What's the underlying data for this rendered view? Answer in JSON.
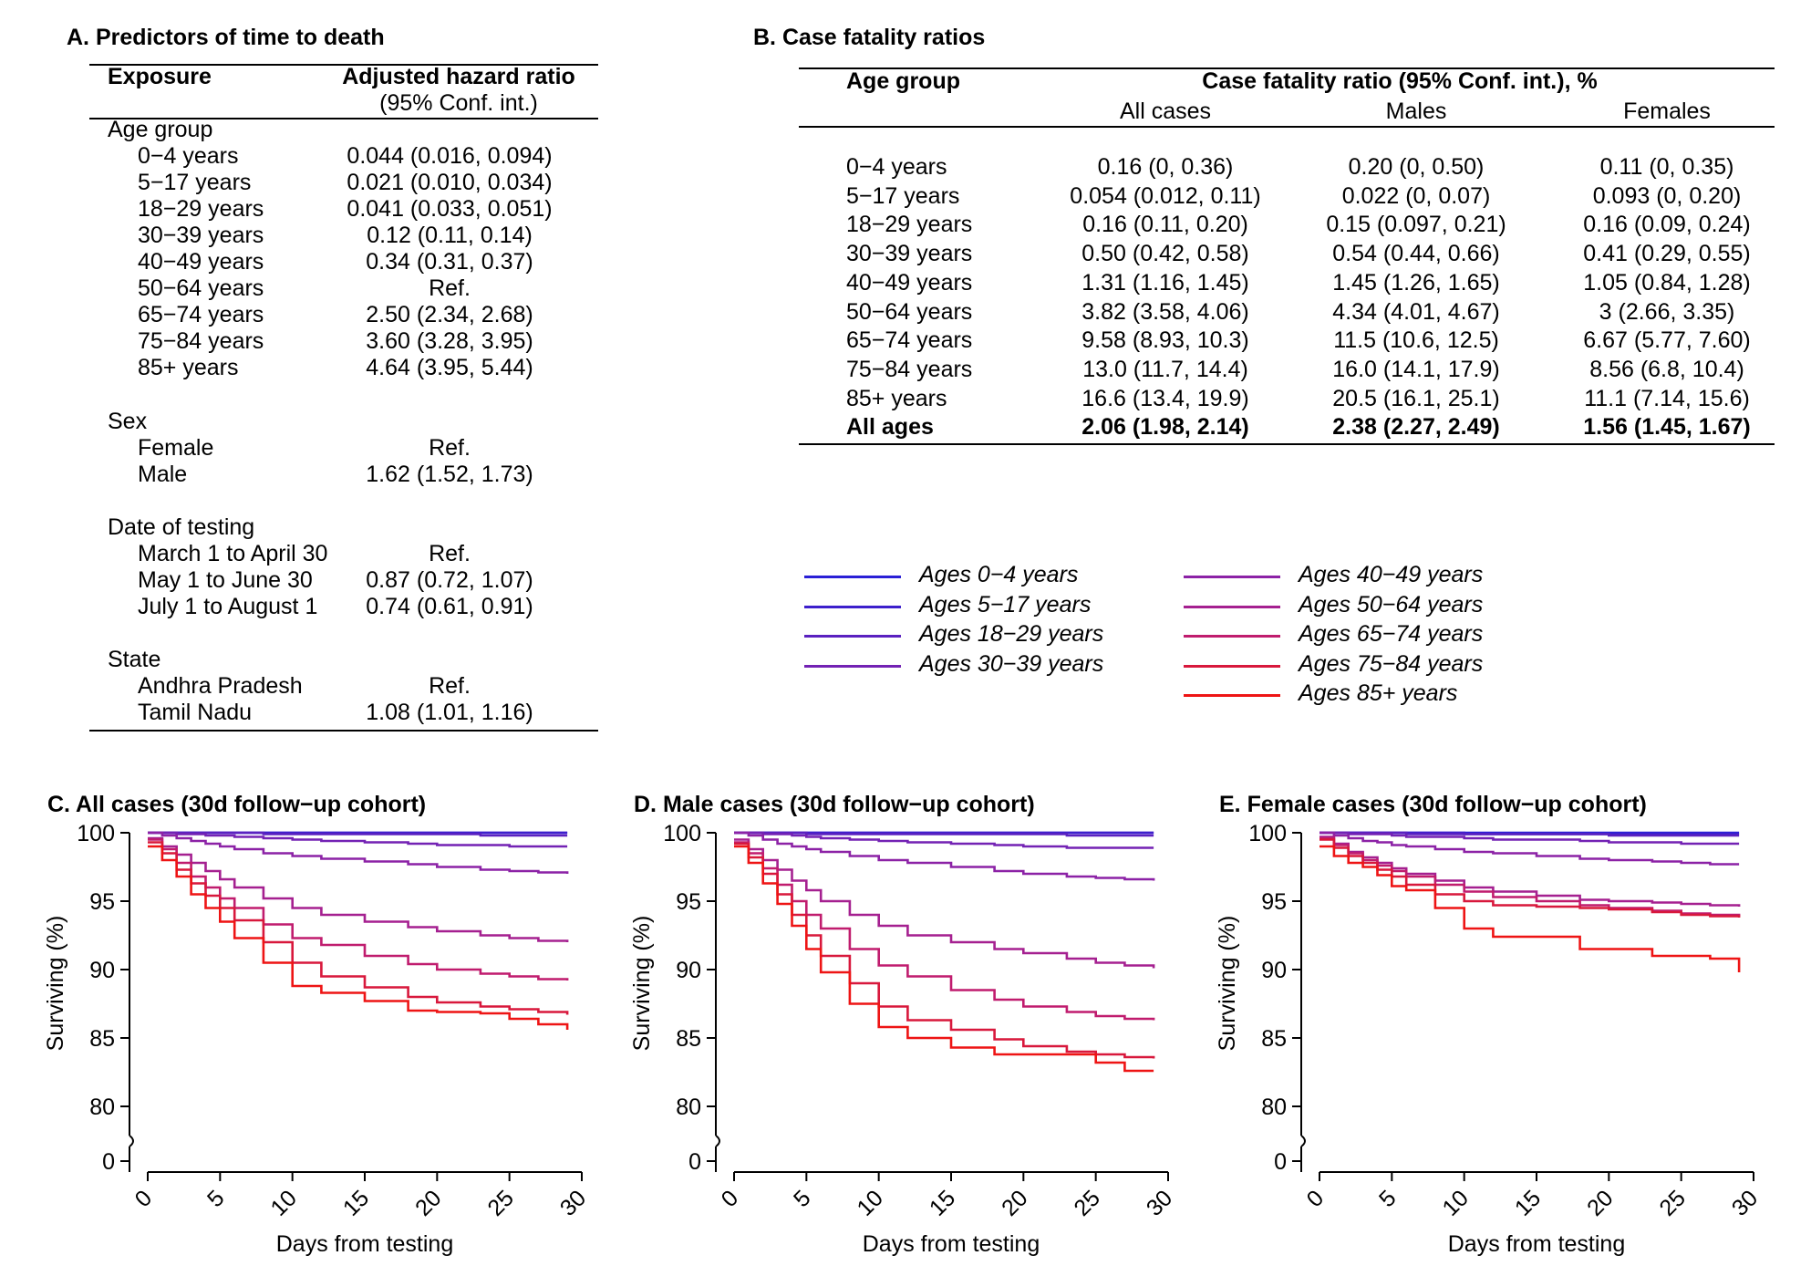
{
  "panelA": {
    "title": "A. Predictors of time to death",
    "col_exposure": "Exposure",
    "col_hr": "Adjusted hazard ratio",
    "col_hr_sub": "(95% Conf. int.)",
    "rows": [
      {
        "label": "Age group",
        "value": "",
        "indent": 0
      },
      {
        "label": "0−4 years",
        "value": "0.044 (0.016, 0.094)",
        "indent": 1
      },
      {
        "label": "5−17 years",
        "value": "0.021 (0.010, 0.034)",
        "indent": 1
      },
      {
        "label": "18−29 years",
        "value": "0.041 (0.033, 0.051)",
        "indent": 1
      },
      {
        "label": "30−39 years",
        "value": "0.12 (0.11, 0.14)",
        "indent": 1
      },
      {
        "label": "40−49 years",
        "value": "0.34 (0.31, 0.37)",
        "indent": 1
      },
      {
        "label": "50−64 years",
        "value": "Ref.",
        "indent": 1
      },
      {
        "label": "65−74 years",
        "value": "2.50 (2.34, 2.68)",
        "indent": 1
      },
      {
        "label": "75−84 years",
        "value": "3.60 (3.28, 3.95)",
        "indent": 1
      },
      {
        "label": "85+ years",
        "value": "4.64 (3.95, 5.44)",
        "indent": 1
      },
      {
        "label": "Sex",
        "value": "",
        "indent": 0
      },
      {
        "label": "Female",
        "value": "Ref.",
        "indent": 1
      },
      {
        "label": "Male",
        "value": "1.62 (1.52, 1.73)",
        "indent": 1
      },
      {
        "label": "Date of testing",
        "value": "",
        "indent": 0
      },
      {
        "label": "March 1 to April 30",
        "value": "Ref.",
        "indent": 1
      },
      {
        "label": "May 1 to June 30",
        "value": "0.87 (0.72, 1.07)",
        "indent": 1
      },
      {
        "label": "July 1 to August 1",
        "value": "0.74 (0.61, 0.91)",
        "indent": 1
      },
      {
        "label": "State",
        "value": "",
        "indent": 0
      },
      {
        "label": "Andhra Pradesh",
        "value": "Ref.",
        "indent": 1
      },
      {
        "label": "Tamil Nadu",
        "value": "1.08 (1.01, 1.16)",
        "indent": 1
      }
    ]
  },
  "panelB": {
    "title": "B. Case fatality ratios",
    "col_age": "Age group",
    "col_span": "Case fatality ratio (95% Conf. int.), %",
    "sub_all": "All cases",
    "sub_males": "Males",
    "sub_females": "Females",
    "rows": [
      {
        "age": "0−4 years",
        "all": "0.16 (0, 0.36)",
        "males": "0.20 (0, 0.50)",
        "females": "0.11 (0, 0.35)"
      },
      {
        "age": "5−17 years",
        "all": "0.054 (0.012, 0.11)",
        "males": "0.022 (0, 0.07)",
        "females": "0.093 (0, 0.20)"
      },
      {
        "age": "18−29 years",
        "all": "0.16 (0.11, 0.20)",
        "males": "0.15 (0.097, 0.21)",
        "females": "0.16 (0.09, 0.24)"
      },
      {
        "age": "30−39 years",
        "all": "0.50 (0.42, 0.58)",
        "males": "0.54 (0.44, 0.66)",
        "females": "0.41 (0.29, 0.55)"
      },
      {
        "age": "40−49 years",
        "all": "1.31 (1.16, 1.45)",
        "males": "1.45 (1.26, 1.65)",
        "females": "1.05 (0.84, 1.28)"
      },
      {
        "age": "50−64 years",
        "all": "3.82 (3.58, 4.06)",
        "males": "4.34 (4.01, 4.67)",
        "females": "3 (2.66, 3.35)"
      },
      {
        "age": "65−74 years",
        "all": "9.58 (8.93, 10.3)",
        "males": "11.5 (10.6, 12.5)",
        "females": "6.67 (5.77, 7.60)"
      },
      {
        "age": "75−84 years",
        "all": "13.0 (11.7, 14.4)",
        "males": "16.0 (14.1, 17.9)",
        "females": "8.56 (6.8, 10.4)"
      },
      {
        "age": "85+ years",
        "all": "16.6 (13.4, 19.9)",
        "males": "20.5 (16.1, 25.1)",
        "females": "11.1 (7.14, 15.6)"
      },
      {
        "age": "All ages",
        "all": "2.06 (1.98, 2.14)",
        "males": "2.38 (2.27, 2.49)",
        "females": "1.56 (1.45, 1.67)",
        "bold": true
      }
    ]
  },
  "legend": {
    "items": [
      {
        "label": "Ages 0−4 years",
        "color": "#2a1fd6"
      },
      {
        "label": "Ages 5−17 years",
        "color": "#3d1fcc"
      },
      {
        "label": "Ages 18−29 years",
        "color": "#5a21c0"
      },
      {
        "label": "Ages 30−39 years",
        "color": "#7322b4"
      },
      {
        "label": "Ages 40−49 years",
        "color": "#8c22a6"
      },
      {
        "label": "Ages 50−64 years",
        "color": "#a52090"
      },
      {
        "label": "Ages 65−74 years",
        "color": "#c01c6e"
      },
      {
        "label": "Ages 75−84 years",
        "color": "#d8183c"
      },
      {
        "label": "Ages 85+ years",
        "color": "#ee1414"
      }
    ]
  },
  "chart_data": [
    {
      "type": "line",
      "title": "C. All cases (30d follow−up cohort)",
      "xlabel": "Days from testing",
      "ylabel": "Surviving (%)",
      "xlim": [
        0,
        30
      ],
      "ylim_broken": [
        [
          0,
          0
        ],
        [
          80,
          100
        ]
      ],
      "xticks": [
        "0",
        "5",
        "10",
        "15",
        "20",
        "25",
        "30"
      ],
      "yticks": [
        "0",
        "80",
        "85",
        "90",
        "95",
        "100"
      ],
      "x": [
        0,
        1,
        2,
        3,
        4,
        5,
        6,
        8,
        10,
        12,
        15,
        18,
        20,
        23,
        25,
        27,
        29
      ],
      "series": [
        {
          "name": "Ages 0−4 years",
          "values": [
            100,
            100,
            100,
            100,
            100,
            100,
            100,
            100,
            100,
            100,
            100,
            100,
            100,
            100,
            100,
            100,
            100
          ]
        },
        {
          "name": "Ages 5−17 years",
          "values": [
            100,
            100,
            100,
            100,
            100,
            100,
            100,
            100,
            100,
            100,
            100,
            100,
            100,
            100,
            100,
            100,
            100
          ]
        },
        {
          "name": "Ages 18−29 years",
          "values": [
            100,
            100,
            100,
            100,
            100,
            100,
            100,
            99.9,
            99.9,
            99.9,
            99.9,
            99.9,
            99.9,
            99.8,
            99.8,
            99.8,
            99.8
          ]
        },
        {
          "name": "Ages 30−39 years",
          "values": [
            100,
            100,
            99.9,
            99.9,
            99.8,
            99.8,
            99.7,
            99.6,
            99.5,
            99.4,
            99.3,
            99.2,
            99.1,
            99.1,
            99.0,
            99.0,
            99.0
          ]
        },
        {
          "name": "Ages 40−49 years",
          "values": [
            100,
            99.8,
            99.6,
            99.4,
            99.2,
            99.0,
            98.8,
            98.5,
            98.3,
            98.1,
            97.9,
            97.7,
            97.5,
            97.3,
            97.2,
            97.1,
            97.0
          ]
        },
        {
          "name": "Ages 50−64 years",
          "values": [
            99.6,
            99.0,
            98.4,
            97.8,
            97.2,
            96.6,
            96.0,
            95.2,
            94.5,
            94.0,
            93.5,
            93.1,
            92.8,
            92.5,
            92.3,
            92.1,
            92.0
          ]
        },
        {
          "name": "Ages 65−74 years",
          "values": [
            99.5,
            98.8,
            97.8,
            96.8,
            96.0,
            95.2,
            94.5,
            93.3,
            92.3,
            91.8,
            91.0,
            90.4,
            90.0,
            89.7,
            89.5,
            89.3,
            89.2
          ]
        },
        {
          "name": "Ages 75−84 years",
          "values": [
            99.3,
            98.5,
            97.3,
            96.3,
            95.4,
            94.5,
            93.6,
            92.0,
            90.5,
            89.5,
            88.7,
            88.0,
            87.6,
            87.3,
            87.1,
            86.9,
            86.7
          ]
        },
        {
          "name": "Ages 85+ years",
          "values": [
            99.0,
            98.0,
            96.8,
            95.5,
            94.5,
            93.5,
            92.3,
            90.5,
            88.8,
            88.3,
            87.7,
            87.0,
            86.9,
            86.8,
            86.4,
            86.0,
            85.6
          ]
        }
      ]
    },
    {
      "type": "line",
      "title": "D. Male cases (30d follow−up cohort)",
      "xlabel": "Days from testing",
      "ylabel": "Surviving (%)",
      "xlim": [
        0,
        30
      ],
      "ylim_broken": [
        [
          0,
          0
        ],
        [
          80,
          100
        ]
      ],
      "xticks": [
        "0",
        "5",
        "10",
        "15",
        "20",
        "25",
        "30"
      ],
      "yticks": [
        "0",
        "80",
        "85",
        "90",
        "95",
        "100"
      ],
      "x": [
        0,
        1,
        2,
        3,
        4,
        5,
        6,
        8,
        10,
        12,
        15,
        18,
        20,
        23,
        25,
        27,
        29
      ],
      "series": [
        {
          "name": "Ages 0−4 years",
          "values": [
            100,
            100,
            100,
            100,
            100,
            100,
            100,
            100,
            100,
            100,
            100,
            100,
            100,
            100,
            100,
            100,
            100
          ]
        },
        {
          "name": "Ages 5−17 years",
          "values": [
            100,
            100,
            100,
            100,
            100,
            100,
            100,
            100,
            100,
            100,
            100,
            100,
            100,
            100,
            100,
            100,
            100
          ]
        },
        {
          "name": "Ages 18−29 years",
          "values": [
            100,
            100,
            100,
            100,
            100,
            99.9,
            99.9,
            99.9,
            99.9,
            99.9,
            99.9,
            99.9,
            99.9,
            99.8,
            99.8,
            99.8,
            99.8
          ]
        },
        {
          "name": "Ages 30−39 years",
          "values": [
            100,
            100,
            99.9,
            99.9,
            99.8,
            99.7,
            99.6,
            99.5,
            99.4,
            99.3,
            99.2,
            99.1,
            99.0,
            98.9,
            98.9,
            98.9,
            98.9
          ]
        },
        {
          "name": "Ages 40−49 years",
          "values": [
            100,
            99.8,
            99.5,
            99.2,
            99.0,
            98.8,
            98.6,
            98.3,
            98.0,
            97.8,
            97.5,
            97.2,
            97.0,
            96.8,
            96.7,
            96.6,
            96.5
          ]
        },
        {
          "name": "Ages 50−64 years",
          "values": [
            99.5,
            98.8,
            98.0,
            97.3,
            96.5,
            95.8,
            95.0,
            94.0,
            93.2,
            92.5,
            92.0,
            91.5,
            91.2,
            90.8,
            90.5,
            90.3,
            90.1
          ]
        },
        {
          "name": "Ages 65−74 years",
          "values": [
            99.3,
            98.5,
            97.4,
            96.2,
            95.0,
            94.0,
            93.0,
            91.5,
            90.3,
            89.5,
            88.5,
            87.8,
            87.3,
            86.9,
            86.6,
            86.4,
            86.3
          ]
        },
        {
          "name": "Ages 75−84 years",
          "values": [
            99.2,
            98.2,
            97.0,
            95.5,
            94.0,
            92.5,
            91.0,
            89.0,
            87.3,
            86.3,
            85.6,
            84.9,
            84.4,
            84.0,
            83.8,
            83.6,
            83.5
          ]
        },
        {
          "name": "Ages 85+ years",
          "values": [
            99.0,
            97.8,
            96.3,
            94.8,
            93.2,
            91.5,
            89.8,
            87.5,
            85.8,
            85.0,
            84.3,
            83.8,
            83.8,
            83.8,
            83.2,
            82.6,
            82.6
          ]
        }
      ]
    },
    {
      "type": "line",
      "title": "E. Female cases (30d follow−up cohort)",
      "xlabel": "Days from testing",
      "ylabel": "Surviving (%)",
      "xlim": [
        0,
        30
      ],
      "ylim_broken": [
        [
          0,
          0
        ],
        [
          80,
          100
        ]
      ],
      "xticks": [
        "0",
        "5",
        "10",
        "15",
        "20",
        "25",
        "30"
      ],
      "yticks": [
        "0",
        "80",
        "85",
        "90",
        "95",
        "100"
      ],
      "x": [
        0,
        1,
        2,
        3,
        4,
        5,
        6,
        8,
        10,
        12,
        15,
        18,
        20,
        23,
        25,
        27,
        29
      ],
      "series": [
        {
          "name": "Ages 0−4 years",
          "values": [
            100,
            100,
            100,
            100,
            100,
            100,
            100,
            100,
            100,
            100,
            100,
            100,
            100,
            100,
            100,
            100,
            100
          ]
        },
        {
          "name": "Ages 5−17 years",
          "values": [
            100,
            100,
            100,
            100,
            100,
            100,
            100,
            100,
            99.9,
            99.9,
            99.9,
            99.9,
            99.9,
            99.9,
            99.9,
            99.9,
            99.9
          ]
        },
        {
          "name": "Ages 18−29 years",
          "values": [
            100,
            100,
            100,
            100,
            100,
            100,
            99.9,
            99.9,
            99.9,
            99.9,
            99.9,
            99.9,
            99.8,
            99.8,
            99.8,
            99.8,
            99.8
          ]
        },
        {
          "name": "Ages 30−39 years",
          "values": [
            100,
            100,
            99.9,
            99.9,
            99.9,
            99.8,
            99.7,
            99.7,
            99.6,
            99.5,
            99.5,
            99.4,
            99.3,
            99.3,
            99.2,
            99.2,
            99.2
          ]
        },
        {
          "name": "Ages 40−49 years",
          "values": [
            100,
            99.8,
            99.6,
            99.4,
            99.3,
            99.1,
            99.0,
            98.8,
            98.6,
            98.5,
            98.3,
            98.1,
            98.0,
            97.9,
            97.8,
            97.7,
            97.7
          ]
        },
        {
          "name": "Ages 50−64 years",
          "values": [
            99.7,
            99.2,
            98.6,
            98.2,
            97.8,
            97.4,
            97.0,
            96.5,
            96.0,
            95.7,
            95.4,
            95.1,
            95.0,
            94.9,
            94.8,
            94.7,
            94.6
          ]
        },
        {
          "name": "Ages 65−74 years",
          "values": [
            99.6,
            99.1,
            98.5,
            98.0,
            97.6,
            97.2,
            96.8,
            96.2,
            95.7,
            95.3,
            95.0,
            94.7,
            94.5,
            94.3,
            94.1,
            94.0,
            93.9
          ]
        },
        {
          "name": "Ages 75−84 years",
          "values": [
            99.5,
            98.9,
            98.3,
            97.8,
            97.3,
            96.8,
            96.2,
            95.5,
            95.0,
            94.7,
            94.6,
            94.5,
            94.4,
            94.2,
            94.0,
            93.9,
            93.8
          ]
        },
        {
          "name": "Ages 85+ years",
          "values": [
            99.0,
            98.3,
            97.8,
            97.5,
            96.9,
            96.1,
            95.8,
            94.5,
            93.0,
            92.4,
            92.4,
            91.5,
            91.5,
            91.0,
            91.0,
            90.8,
            89.8
          ]
        }
      ]
    }
  ]
}
